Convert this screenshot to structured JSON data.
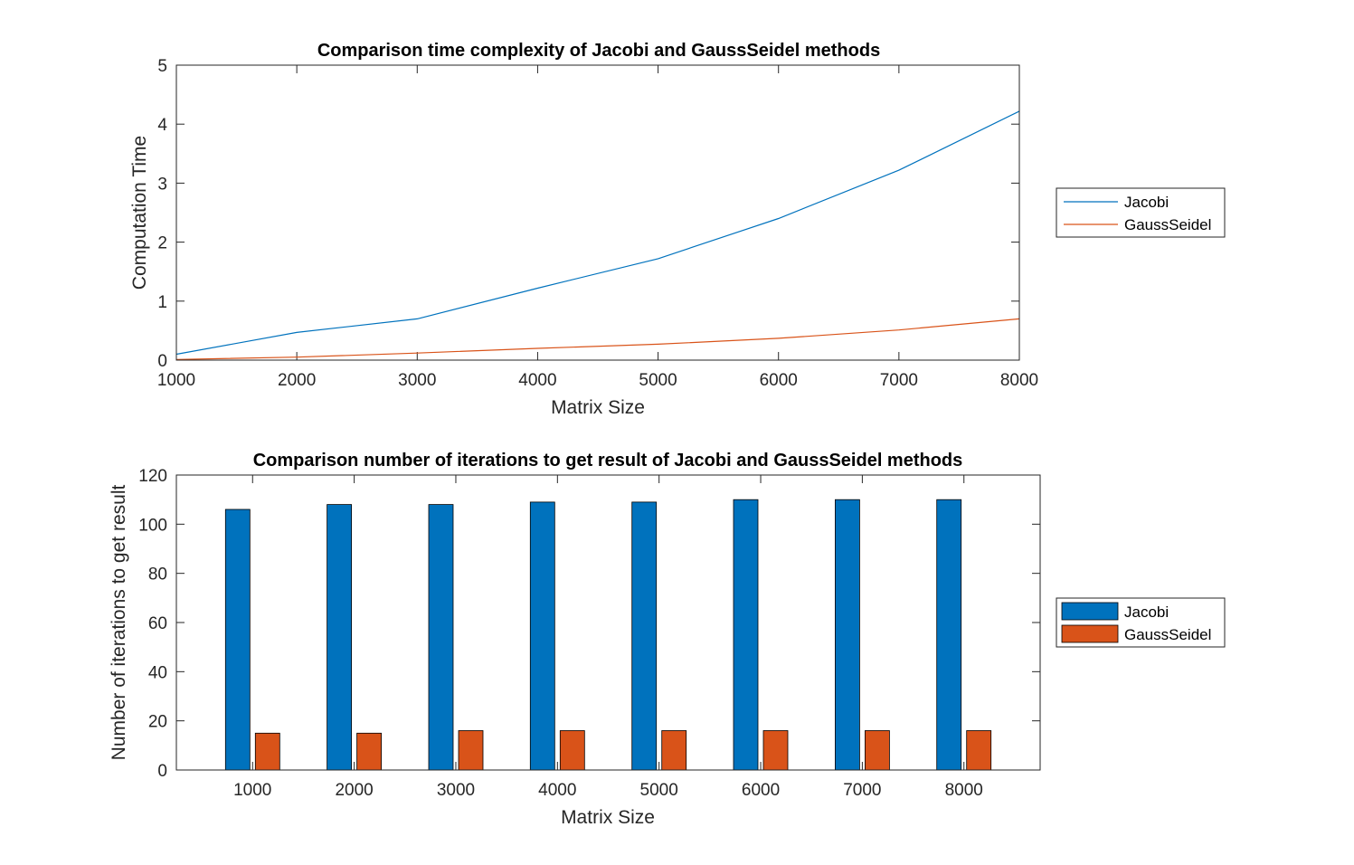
{
  "chart_data": [
    {
      "type": "line",
      "title": "Comparison time complexity of Jacobi and GaussSeidel methods",
      "xlabel": "Matrix Size",
      "ylabel": "Computation Time",
      "x": [
        1000,
        2000,
        3000,
        4000,
        5000,
        6000,
        7000,
        8000
      ],
      "xlim": [
        1000,
        8000
      ],
      "ylim": [
        0,
        5
      ],
      "xticks": [
        "1000",
        "2000",
        "3000",
        "4000",
        "5000",
        "6000",
        "7000",
        "8000"
      ],
      "yticks": [
        "0",
        "1",
        "2",
        "3",
        "4",
        "5"
      ],
      "grid": false,
      "legend_position": "outside-right",
      "series": [
        {
          "name": "Jacobi",
          "color": "#0072BD",
          "values": [
            0.1,
            0.47,
            0.7,
            1.22,
            1.72,
            2.4,
            3.22,
            4.22
          ]
        },
        {
          "name": "GaussSeidel",
          "color": "#D95319",
          "values": [
            0.01,
            0.05,
            0.12,
            0.2,
            0.27,
            0.37,
            0.51,
            0.7
          ]
        }
      ]
    },
    {
      "type": "bar",
      "title": "Comparison number of iterations to get result of Jacobi and GaussSeidel methods",
      "xlabel": "Matrix Size",
      "ylabel": "Number of iterations to get result",
      "categories": [
        "1000",
        "2000",
        "3000",
        "4000",
        "5000",
        "6000",
        "7000",
        "8000"
      ],
      "ylim": [
        0,
        120
      ],
      "yticks": [
        "0",
        "20",
        "40",
        "60",
        "80",
        "100",
        "120"
      ],
      "grid": false,
      "legend_position": "outside-right",
      "series": [
        {
          "name": "Jacobi",
          "color": "#0072BD",
          "values": [
            106,
            108,
            108,
            109,
            109,
            110,
            110,
            110
          ]
        },
        {
          "name": "GaussSeidel",
          "color": "#D95319",
          "values": [
            15,
            15,
            16,
            16,
            16,
            16,
            16,
            16
          ]
        }
      ]
    }
  ]
}
